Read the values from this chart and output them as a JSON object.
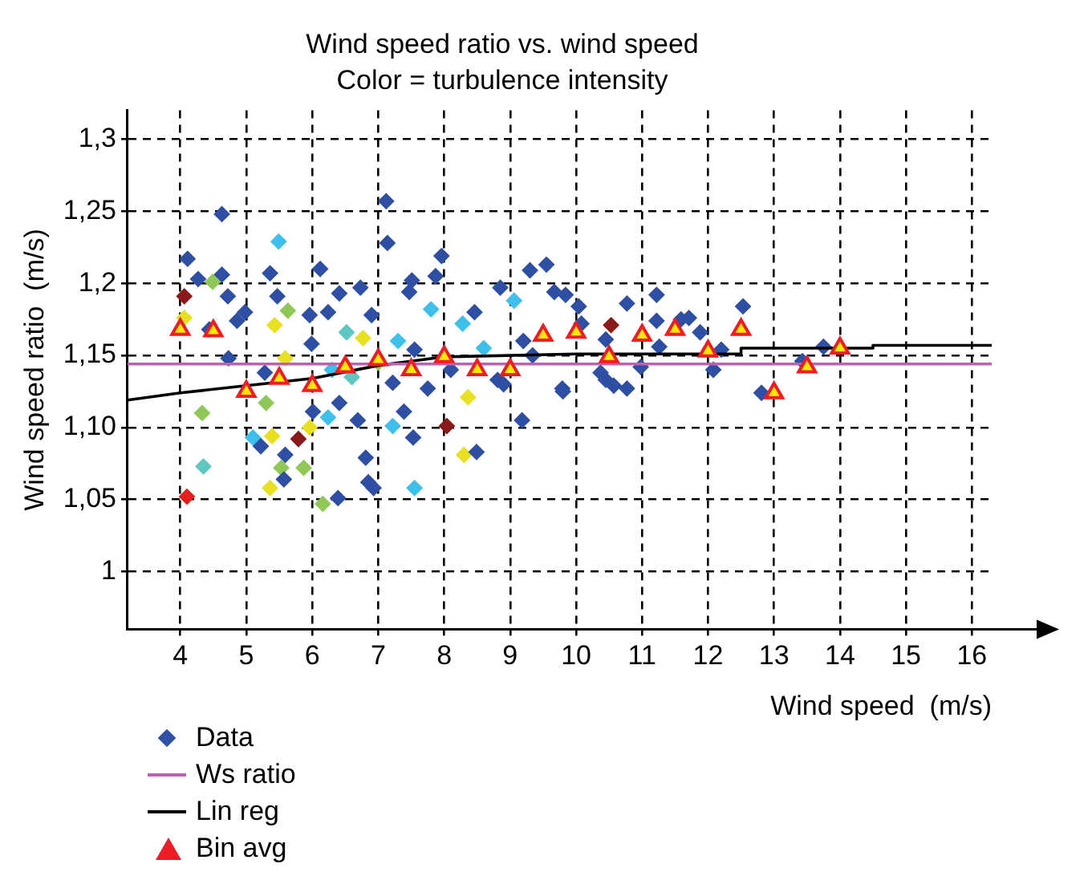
{
  "chart_data": {
    "type": "scatter",
    "title": "Wind speed ratio vs. wind speed",
    "subtitle": "Color = turbulence intensity",
    "xlabel": "Wind speed  (m/s)",
    "ylabel": "Wind speed ratio  (m/s)",
    "xlim": [
      3.2,
      16.3
    ],
    "ylim": [
      0.96,
      1.32
    ],
    "xticks": [
      4,
      5,
      6,
      7,
      8,
      9,
      10,
      11,
      12,
      13,
      14,
      15,
      16
    ],
    "yticks": [
      1,
      {
        "value": 1.05,
        "label": "1,05"
      },
      {
        "value": 1.1,
        "label": "1,10"
      },
      {
        "value": 1.15,
        "label": "1,15"
      },
      {
        "value": 1.2,
        "label": "1,2"
      },
      {
        "value": 1.25,
        "label": "1,25"
      },
      {
        "value": 1.3,
        "label": "1,3"
      }
    ],
    "grid": true,
    "legend": "bottom left",
    "series": [
      {
        "name": "Data",
        "type": "scatter",
        "marker": "diamond",
        "color": "#2e4fa3",
        "x": [
          4.11,
          4.27,
          4.63,
          4.63,
          4.72,
          4.06,
          4.06,
          4.49,
          4.44,
          4.73,
          4.33,
          4.35,
          4.1,
          4.86,
          4.98,
          5.36,
          5.49,
          5.47,
          5.63,
          5.43,
          5.59,
          5.28,
          5.3,
          5.1,
          5.22,
          5.39,
          5.59,
          5.53,
          5.36,
          5.57,
          5.96,
          6.12,
          5.99,
          6.24,
          6.01,
          5.79,
          5.96,
          5.87,
          6.16,
          6.39,
          6.41,
          6.73,
          6.52,
          6.77,
          6.9,
          6.24,
          6.41,
          6.69,
          6.81,
          6.85,
          6.93,
          7.12,
          7.14,
          7.51,
          7.47,
          7.8,
          7.96,
          7.87,
          7.55,
          7.22,
          7.39,
          7.53,
          7.22,
          7.55,
          8.04,
          7.75,
          8.28,
          8.46,
          8.36,
          8.3,
          8.49,
          8.85,
          8.81,
          9.06,
          9.18,
          9.3,
          9.55,
          9.34,
          9.67,
          9.79,
          9.84,
          10.04,
          10.08,
          10.53,
          10.45,
          10.77,
          11.22,
          11.22,
          11.26,
          11.59,
          11.71,
          11.88,
          12.53,
          12.2,
          10.98,
          10.37,
          10.45,
          10.57,
          10.77,
          12.08,
          12.81,
          13.43,
          13.75,
          9.8,
          6.6,
          7.0,
          7.3,
          8.1,
          8.6,
          8.9,
          9.2,
          6.3
        ],
        "values": [
          1.217,
          1.203,
          1.248,
          1.206,
          1.191,
          1.191,
          1.176,
          1.201,
          1.168,
          1.148,
          1.11,
          1.073,
          1.052,
          1.174,
          1.18,
          1.207,
          1.229,
          1.191,
          1.181,
          1.171,
          1.148,
          1.138,
          1.117,
          1.093,
          1.087,
          1.094,
          1.081,
          1.072,
          1.058,
          1.064,
          1.178,
          1.21,
          1.158,
          1.18,
          1.111,
          1.092,
          1.1,
          1.072,
          1.047,
          1.051,
          1.193,
          1.197,
          1.166,
          1.162,
          1.178,
          1.107,
          1.117,
          1.105,
          1.079,
          1.062,
          1.058,
          1.257,
          1.228,
          1.202,
          1.194,
          1.182,
          1.219,
          1.205,
          1.154,
          1.131,
          1.111,
          1.093,
          1.101,
          1.058,
          1.101,
          1.127,
          1.172,
          1.18,
          1.121,
          1.081,
          1.083,
          1.197,
          1.133,
          1.188,
          1.105,
          1.209,
          1.213,
          1.15,
          1.194,
          1.127,
          1.192,
          1.184,
          1.172,
          1.171,
          1.161,
          1.186,
          1.192,
          1.174,
          1.156,
          1.175,
          1.176,
          1.166,
          1.184,
          1.154,
          1.142,
          1.138,
          1.133,
          1.129,
          1.127,
          1.14,
          1.124,
          1.146,
          1.156,
          1.125,
          1.135,
          1.145,
          1.16,
          1.14,
          1.155,
          1.13,
          1.16,
          1.14
        ],
        "colors": [
          "#2e4fa3",
          "#2e4fa3",
          "#2e4fa3",
          "#2e4fa3",
          "#2e4fa3",
          "#8b1a1a",
          "#e8e020",
          "#90c858",
          "#2e4fa3",
          "#2e4fa3",
          "#90c858",
          "#5ec8c0",
          "#e41e1e",
          "#2e4fa3",
          "#2e4fa3",
          "#2e4fa3",
          "#3ec0ec",
          "#2e4fa3",
          "#90c858",
          "#e8e020",
          "#e8e020",
          "#2e4fa3",
          "#90c858",
          "#3ec0ec",
          "#2e4fa3",
          "#e8e020",
          "#2e4fa3",
          "#90c858",
          "#e8e020",
          "#2e4fa3",
          "#2e4fa3",
          "#2e4fa3",
          "#2e4fa3",
          "#2e4fa3",
          "#2e4fa3",
          "#8b1a1a",
          "#e8e020",
          "#90c858",
          "#90c858",
          "#2e4fa3",
          "#2e4fa3",
          "#2e4fa3",
          "#5ec8c0",
          "#e8e020",
          "#2e4fa3",
          "#3ec0ec",
          "#2e4fa3",
          "#2e4fa3",
          "#2e4fa3",
          "#2e4fa3",
          "#2e4fa3",
          "#2e4fa3",
          "#2e4fa3",
          "#2e4fa3",
          "#2e4fa3",
          "#3ec0ec",
          "#2e4fa3",
          "#2e4fa3",
          "#2e4fa3",
          "#2e4fa3",
          "#2e4fa3",
          "#2e4fa3",
          "#3ec0ec",
          "#3ec0ec",
          "#8b1a1a",
          "#2e4fa3",
          "#3ec0ec",
          "#2e4fa3",
          "#e8e020",
          "#e8e020",
          "#2e4fa3",
          "#2e4fa3",
          "#2e4fa3",
          "#3ec0ec",
          "#2e4fa3",
          "#2e4fa3",
          "#2e4fa3",
          "#2e4fa3",
          "#2e4fa3",
          "#2e4fa3",
          "#2e4fa3",
          "#2e4fa3",
          "#2e4fa3",
          "#8b1a1a",
          "#2e4fa3",
          "#2e4fa3",
          "#2e4fa3",
          "#2e4fa3",
          "#2e4fa3",
          "#2e4fa3",
          "#2e4fa3",
          "#2e4fa3",
          "#2e4fa3",
          "#2e4fa3",
          "#2e4fa3",
          "#2e4fa3",
          "#2e4fa3",
          "#2e4fa3",
          "#2e4fa3",
          "#2e4fa3",
          "#2e4fa3",
          "#2e4fa3",
          "#2e4fa3",
          "#2e4fa3",
          "#5ec8c0",
          "#90c858",
          "#3ec0ec",
          "#2e4fa3",
          "#3ec0ec",
          "#2e4fa3",
          "#2e4fa3",
          "#3ec0ec"
        ]
      },
      {
        "name": "Ws ratio",
        "type": "line",
        "marker": "none",
        "color": "#c060b0",
        "x": [
          3.2,
          16.3
        ],
        "values": [
          1.144,
          1.144
        ]
      },
      {
        "name": "Lin reg",
        "type": "line",
        "marker": "none",
        "color": "#000000",
        "x": [
          3.2,
          4,
          5,
          6,
          7,
          7.5,
          8,
          10,
          12.5,
          12.5,
          14.5,
          14.5,
          16.3
        ],
        "values": [
          1.119,
          1.124,
          1.129,
          1.134,
          1.143,
          1.146,
          1.149,
          1.151,
          1.151,
          1.155,
          1.155,
          1.157,
          1.157
        ]
      },
      {
        "name": "Bin avg",
        "type": "scatter",
        "marker": "triangle",
        "color": "#ee1c25",
        "x": [
          4,
          4.5,
          5,
          5.5,
          6,
          6.5,
          7,
          7.5,
          8,
          8.5,
          9,
          9.5,
          10,
          10.5,
          11,
          11.5,
          12,
          12.5,
          13,
          13.5,
          14
        ],
        "values": [
          1.168,
          1.167,
          1.125,
          1.134,
          1.129,
          1.142,
          1.147,
          1.14,
          1.149,
          1.14,
          1.14,
          1.164,
          1.166,
          1.149,
          1.164,
          1.168,
          1.153,
          1.168,
          1.124,
          1.142,
          1.155
        ]
      }
    ]
  }
}
